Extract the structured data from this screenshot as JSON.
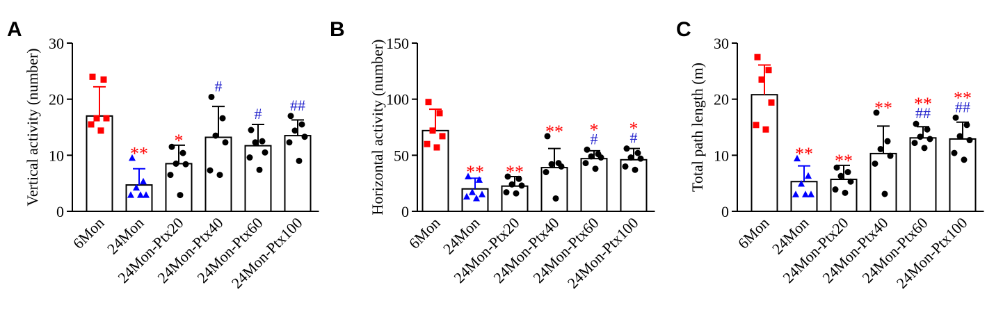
{
  "colors": {
    "group1": "#ff0000",
    "group2": "#0000ff",
    "others": "#000000",
    "star": "#ff0000",
    "hash": "#2222cc"
  },
  "chart_data": [
    {
      "type": "bar",
      "panel": "A",
      "ylabel": "Vertical activity  (number)",
      "ylim": [
        0,
        30
      ],
      "yticks": [
        "0",
        "10",
        "20",
        "30"
      ],
      "categories": [
        "6Mon",
        "24Mon",
        "24Mon-Ptx20",
        "24Mon-Ptx40",
        "24Mon-Ptx60",
        "24Mon-Ptx100"
      ],
      "values": [
        17,
        4.7,
        8.5,
        13.2,
        11.7,
        13.5
      ],
      "errors": [
        5.2,
        2.9,
        3.3,
        5.5,
        3.8,
        2.8
      ],
      "points": [
        [
          24,
          23.5,
          16.6,
          16.6,
          15.5,
          14.4
        ],
        [
          9.5,
          5.3,
          4.2,
          2.9,
          2.9,
          2.9
        ],
        [
          11.5,
          10.4,
          8.5,
          8.4,
          6.5,
          2.9
        ],
        [
          20.4,
          16.6,
          13.5,
          12.3,
          7.3,
          6.5
        ],
        [
          14.5,
          12.5,
          12.3,
          10.5,
          9.6,
          7.4
        ],
        [
          17,
          15.5,
          14.4,
          13.3,
          12.3,
          9.0
        ]
      ],
      "significance": [
        [
          "",
          ""
        ],
        [
          "**",
          ""
        ],
        [
          "*",
          ""
        ],
        [
          "",
          "#"
        ],
        [
          "",
          "#"
        ],
        [
          "",
          "##"
        ]
      ]
    },
    {
      "type": "bar",
      "panel": "B",
      "ylabel": "Horizontal activity  (number)",
      "ylim": [
        0,
        150
      ],
      "yticks": [
        "0",
        "50",
        "100",
        "150"
      ],
      "categories": [
        "6Mon",
        "24Mon",
        "24Mon-Ptx20",
        "24Mon-Ptx40",
        "24Mon-Ptx60",
        "24Mon-Ptx100"
      ],
      "values": [
        72,
        20,
        22.5,
        39,
        47,
        46
      ],
      "errors": [
        19,
        9.5,
        8.5,
        17,
        7,
        10
      ],
      "points": [
        [
          97.5,
          87.5,
          72,
          67,
          60,
          57
        ],
        [
          31,
          28,
          17,
          15,
          13,
          11.5
        ],
        [
          31,
          29,
          24,
          23,
          17,
          16
        ],
        [
          67,
          43,
          42,
          40,
          35,
          11.5
        ],
        [
          55,
          51,
          49,
          48,
          43,
          38
        ],
        [
          56,
          52,
          48,
          47,
          40,
          37
        ]
      ],
      "significance": [
        [
          "",
          ""
        ],
        [
          "**",
          ""
        ],
        [
          "**",
          ""
        ],
        [
          "**",
          ""
        ],
        [
          "*",
          "#"
        ],
        [
          "*",
          "#"
        ]
      ]
    },
    {
      "type": "bar",
      "panel": "C",
      "ylabel": "Total path length (m)",
      "ylim": [
        0,
        30
      ],
      "yticks": [
        "0",
        "10",
        "20",
        "30"
      ],
      "categories": [
        "6Mon",
        "24Mon",
        "24Mon-Ptx20",
        "24Mon-Ptx40",
        "24Mon-Ptx60",
        "24Mon-Ptx100"
      ],
      "values": [
        20.8,
        5.3,
        5.7,
        10.3,
        13.1,
        12.9
      ],
      "errors": [
        5.3,
        2.8,
        2.5,
        4.9,
        2.0,
        3.0
      ],
      "points": [
        [
          27.5,
          25.2,
          23.5,
          19.4,
          15.4,
          14.6
        ],
        [
          9.4,
          6.3,
          4.9,
          3.0,
          3.0,
          3.0
        ],
        [
          7.8,
          7.0,
          6.3,
          5.3,
          3.9,
          3.3
        ],
        [
          17.6,
          12.5,
          11.1,
          9.9,
          8.5,
          3.1
        ],
        [
          15.6,
          14.6,
          13.3,
          12.9,
          12.2,
          11.3
        ],
        [
          16.7,
          15.4,
          13.4,
          12.7,
          10.4,
          9.2
        ]
      ],
      "significance": [
        [
          "",
          ""
        ],
        [
          "**",
          ""
        ],
        [
          "**",
          ""
        ],
        [
          "**",
          ""
        ],
        [
          "**",
          "##"
        ],
        [
          "**",
          "##"
        ]
      ]
    }
  ]
}
